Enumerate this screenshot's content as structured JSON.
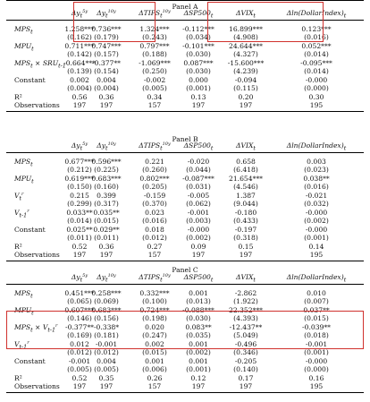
{
  "columns": [
    "Δy_t^{5y}",
    "Δy_t^{10y}",
    "ΔTIPS_t^{10y}",
    "ΔSP500_t",
    "ΔVIX_t",
    "Δln(DollarIndex)_t"
  ],
  "panels": [
    {
      "title": "Panel A",
      "rows": [
        {
          "label": "MPS_t",
          "values": [
            "1.258***",
            "0.736***",
            "1.324***",
            "-0.112***",
            "16.899***",
            "0.123***"
          ],
          "se": [
            "(0.162)",
            "(0.179)",
            "(0.243)",
            "(0.034)",
            "(4.908)",
            "(0.016)"
          ]
        },
        {
          "label": "MPU_t",
          "values": [
            "0.711***",
            "0.747***",
            "0.797***",
            "-0.101***",
            "24.644***",
            "0.052***"
          ],
          "se": [
            "(0.142)",
            "(0.157)",
            "(0.188)",
            "(0.030)",
            "(4.327)",
            "(0.014)"
          ]
        },
        {
          "label": "MPS_t × SRU_{t-1}",
          "values": [
            "-0.664***",
            "-0.377**",
            "-1.069***",
            "0.087***",
            "-15.600***",
            "-0.095***"
          ],
          "se": [
            "(0.139)",
            "(0.154)",
            "(0.250)",
            "(0.030)",
            "(4.239)",
            "(0.014)"
          ]
        },
        {
          "label": "Constant",
          "values": [
            "0.002",
            "0.004",
            "-0.002",
            "0.000",
            "-0.094",
            "-0.000"
          ],
          "se": [
            "(0.004)",
            "(0.004)",
            "(0.005)",
            "(0.001)",
            "(0.115)",
            "(0.000)"
          ]
        }
      ],
      "r2": [
        "0.56",
        "0.36",
        "0.34",
        "0.13",
        "0.20",
        "0.30"
      ],
      "obs": [
        "197",
        "197",
        "157",
        "197",
        "197",
        "195"
      ]
    },
    {
      "title": "Panel B",
      "rows": [
        {
          "label": "MPS_t",
          "values": [
            "0.677***",
            "0.596***",
            "0.221",
            "-0.020",
            "0.658",
            "0.003"
          ],
          "se": [
            "(0.212)",
            "(0.225)",
            "(0.260)",
            "(0.044)",
            "(6.418)",
            "(0.023)"
          ]
        },
        {
          "label": "MPU_t",
          "values": [
            "0.619***",
            "0.683***",
            "0.802***",
            "-0.087***",
            "21.654***",
            "0.038**"
          ],
          "se": [
            "(0.150)",
            "(0.160)",
            "(0.205)",
            "(0.031)",
            "(4.546)",
            "(0.016)"
          ]
        },
        {
          "label": "V_t^r",
          "values": [
            "0.215",
            "0.399",
            "-0.159",
            "-0.005",
            "1.387",
            "-0.021"
          ],
          "se": [
            "(0.299)",
            "(0.317)",
            "(0.370)",
            "(0.062)",
            "(9.044)",
            "(0.032)"
          ]
        },
        {
          "label": "V_{t-1}^r",
          "values": [
            "0.033**",
            "0.035**",
            "0.023",
            "-0.001",
            "-0.180",
            "-0.000"
          ],
          "se": [
            "(0.014)",
            "(0.015)",
            "(0.016)",
            "(0.003)",
            "(0.433)",
            "(0.002)"
          ]
        },
        {
          "label": "Constant",
          "values": [
            "0.025**",
            "0.029**",
            "0.018",
            "-0.000",
            "-0.197",
            "-0.000"
          ],
          "se": [
            "(0.011)",
            "(0.011)",
            "(0.012)",
            "(0.002)",
            "(0.318)",
            "(0.001)"
          ]
        }
      ],
      "r2": [
        "0.52",
        "0.36",
        "0.27",
        "0.09",
        "0.15",
        "0.14"
      ],
      "obs": [
        "197",
        "197",
        "157",
        "197",
        "197",
        "195"
      ]
    },
    {
      "title": "Panel C",
      "rows": [
        {
          "label": "MPS_t",
          "values": [
            "0.451***",
            "0.258***",
            "0.332***",
            "0.001",
            "-2.862",
            "0.010"
          ],
          "se": [
            "(0.065)",
            "(0.069)",
            "(0.100)",
            "(0.013)",
            "(1.922)",
            "(0.007)"
          ]
        },
        {
          "label": "MPU_t",
          "values": [
            "0.607***",
            "0.683***",
            "0.724***",
            "-0.088***",
            "22.352***",
            "0.037**"
          ],
          "se": [
            "(0.146)",
            "(0.156)",
            "(0.198)",
            "(0.030)",
            "(4.393)",
            "(0.015)"
          ]
        },
        {
          "label": "MPS_t × V_{t-1}^r",
          "values": [
            "-0.377**",
            "-0.338*",
            "0.020",
            "0.083**",
            "-12.437**",
            "-0.039**"
          ],
          "se": [
            "(0.169)",
            "(0.181)",
            "(0.247)",
            "(0.035)",
            "(5.049)",
            "(0.018)"
          ]
        },
        {
          "label": "V_{t-1}^r",
          "values": [
            "0.012",
            "-0.001",
            "0.002",
            "0.001",
            "-0.496",
            "-0.001"
          ],
          "se": [
            "(0.012)",
            "(0.012)",
            "(0.015)",
            "(0.002)",
            "(0.346)",
            "(0.001)"
          ]
        },
        {
          "label": "Constant",
          "values": [
            "-0.001",
            "0.004",
            "0.001",
            "0.001",
            "-0.205",
            "-0.000"
          ],
          "se": [
            "(0.005)",
            "(0.005)",
            "(0.006)",
            "(0.001)",
            "(0.140)",
            "(0.000)"
          ]
        }
      ],
      "r2": [
        "0.52",
        "0.35",
        "0.26",
        "0.12",
        "0.17",
        "0.16"
      ],
      "obs": [
        "197",
        "197",
        "157",
        "197",
        "197",
        "195"
      ]
    }
  ],
  "row_labels": {
    "r2": "R²",
    "obs": "Observations"
  },
  "highlight_color": "#d0312d"
}
